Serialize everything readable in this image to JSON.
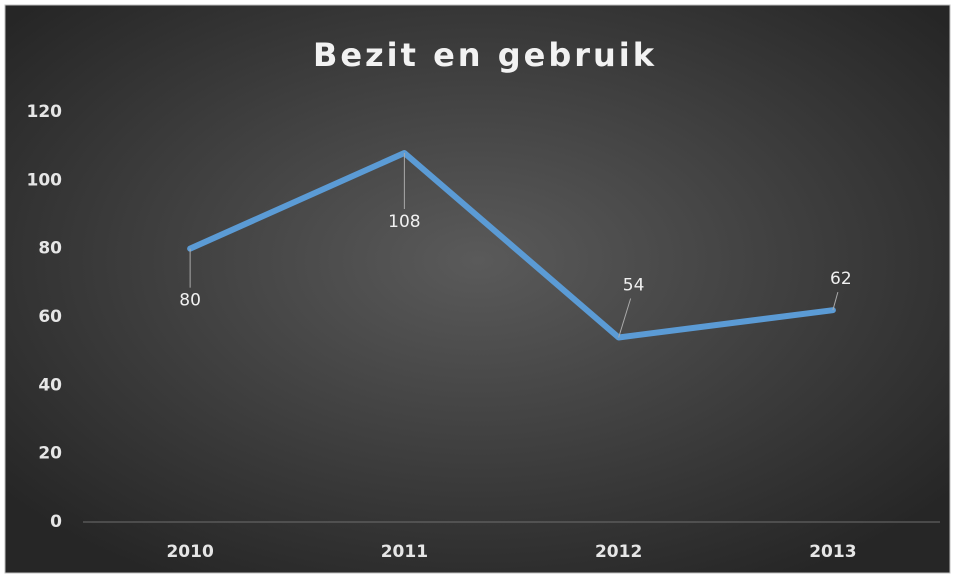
{
  "chart_data": {
    "type": "line",
    "title": "Bezit en gebruik",
    "categories": [
      "2010",
      "2011",
      "2012",
      "2013"
    ],
    "series": [
      {
        "name": "Bezit en gebruik",
        "color": "#5b9bd5",
        "values": [
          80,
          108,
          54,
          62
        ]
      }
    ],
    "ylim": [
      0,
      120
    ],
    "yticks": [
      0,
      20,
      40,
      60,
      80,
      100,
      120
    ],
    "grid": false
  }
}
